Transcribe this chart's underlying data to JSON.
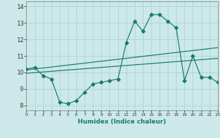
{
  "xlabel": "Humidex (Indice chaleur)",
  "background_color": "#cce8e8",
  "line_color": "#1a7a6e",
  "grid_color": "#aad4d4",
  "hours": [
    0,
    1,
    2,
    3,
    4,
    5,
    6,
    7,
    8,
    9,
    10,
    11,
    12,
    13,
    14,
    15,
    16,
    17,
    18,
    19,
    20,
    21,
    22,
    23
  ],
  "line1": [
    10.2,
    10.3,
    9.8,
    9.6,
    8.2,
    8.1,
    8.3,
    8.8,
    9.3,
    9.4,
    9.5,
    9.6,
    11.8,
    13.1,
    12.5,
    13.5,
    13.5,
    13.1,
    12.7,
    9.5,
    11.0,
    9.7,
    9.7,
    9.4
  ],
  "trend1_x": [
    0,
    23
  ],
  "trend1_y": [
    10.15,
    11.5
  ],
  "trend2_x": [
    0,
    23
  ],
  "trend2_y": [
    9.95,
    10.85
  ],
  "xlim": [
    0,
    23
  ],
  "ylim": [
    7.7,
    14.3
  ],
  "xticks": [
    0,
    1,
    2,
    3,
    4,
    5,
    6,
    7,
    8,
    9,
    10,
    11,
    12,
    13,
    14,
    15,
    16,
    17,
    18,
    19,
    20,
    21,
    22,
    23
  ],
  "yticks": [
    8,
    9,
    10,
    11,
    12,
    13,
    14
  ],
  "marker_style": "D",
  "marker_size": 2.5
}
